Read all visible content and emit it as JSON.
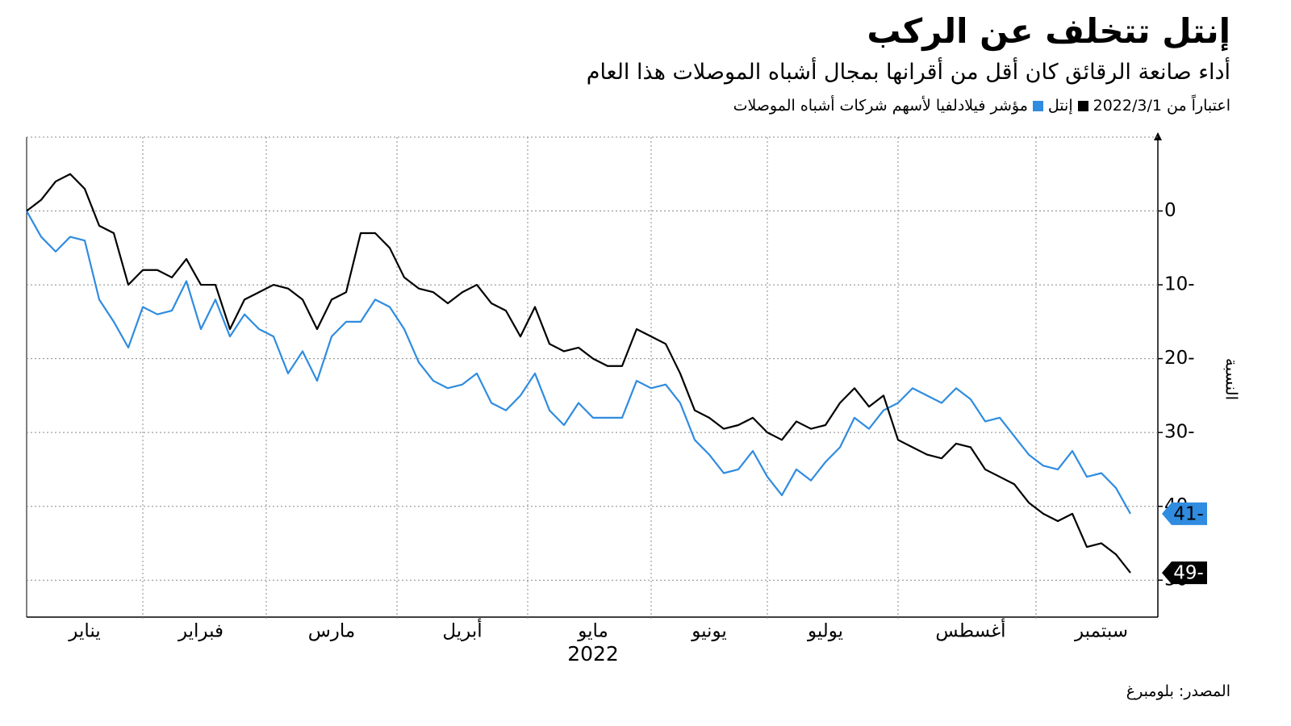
{
  "chart_data": {
    "type": "line",
    "title": "إنتل تتخلف عن الركب",
    "subtitle": "أداء صانعة الرقائق كان أقل من أقرانها بمجال أشباه الموصلات هذا العام",
    "legend_note": "اعتباراً من 2022/3/1",
    "source": "المصدر: بلومبرغ",
    "ylabel": "النسبة",
    "xlabel": "2022",
    "categories": [
      null,
      null,
      null,
      null,
      "يناير",
      null,
      null,
      null,
      null,
      null,
      null,
      null,
      "فبراير",
      null,
      null,
      null,
      null,
      null,
      null,
      null,
      null,
      "مارس",
      null,
      null,
      null,
      null,
      null,
      null,
      null,
      null,
      "أبريل",
      null,
      null,
      null,
      null,
      null,
      null,
      null,
      null,
      "مايو",
      null,
      null,
      null,
      null,
      null,
      null,
      null,
      "يونيو",
      null,
      null,
      null,
      null,
      null,
      null,
      null,
      "يوليو",
      null,
      null,
      null,
      null,
      null,
      null,
      null,
      null,
      null,
      "أغسطس",
      null,
      null,
      null,
      null,
      null,
      null,
      null,
      null,
      "سبتمبر",
      null,
      null
    ],
    "series": [
      {
        "name": "إنتل",
        "color": "#000000",
        "end_label": "49-",
        "values": [
          0,
          1.5,
          4,
          5,
          3,
          -2,
          -3,
          -10,
          -8,
          -8,
          -9,
          -6.5,
          -10,
          -10,
          -16,
          -12,
          -11,
          -10,
          -10.5,
          -12,
          -16,
          -12,
          -11,
          -3,
          -3,
          -5,
          -9,
          -10.5,
          -11,
          -12.5,
          -11,
          -10,
          -12.5,
          -13.5,
          -17,
          -13,
          -18,
          -19,
          -18.5,
          -20,
          -21,
          -21,
          -16,
          -17,
          -18,
          -22,
          -27,
          -28,
          -29.5,
          -29,
          -28,
          -30,
          -31,
          -28.5,
          -29.5,
          -29,
          -26,
          -24,
          -26.5,
          -25,
          -31,
          -32,
          -33,
          -33.5,
          -31.5,
          -32,
          -35,
          -36,
          -37,
          -39.5,
          -41,
          -42,
          -41,
          -45.5,
          -45,
          -46.5,
          -49
        ]
      },
      {
        "name": "مؤشر فيلادلفيا لأسهم شركات أشباه الموصلات",
        "color": "#2f8ce0",
        "end_label": "41-",
        "values": [
          0,
          -3.5,
          -5.5,
          -3.5,
          -4,
          -12,
          -15,
          -18.5,
          -13,
          -14,
          -13.5,
          -9.5,
          -16,
          -12,
          -17,
          -14,
          -16,
          -17,
          -22,
          -19,
          -23,
          -17,
          -15,
          -15,
          -12,
          -13,
          -16,
          -20.5,
          -23,
          -24,
          -23.5,
          -22,
          -26,
          -27,
          -25,
          -22,
          -27,
          -29,
          -26,
          -28,
          -28,
          -28,
          -23,
          -24,
          -23.5,
          -26,
          -31,
          -33,
          -35.5,
          -35,
          -32.5,
          -36,
          -38.5,
          -35,
          -36.5,
          -34,
          -32,
          -28,
          -29.5,
          -27,
          -26,
          -24,
          -25,
          -26,
          -24,
          -25.5,
          -28.5,
          -28,
          -30.5,
          -33,
          -34.5,
          -35,
          -32.5,
          -36,
          -35.5,
          -37.5,
          -41
        ]
      }
    ],
    "ylim": [
      -55,
      10
    ],
    "yticks": [
      0,
      {
        "value": -10,
        "label": "10-"
      },
      {
        "value": -20,
        "label": "20-"
      },
      {
        "value": -30,
        "label": "30-"
      },
      {
        "value": -40,
        "label": "40-"
      },
      {
        "value": -50,
        "label": "50-"
      }
    ],
    "grid": true
  }
}
